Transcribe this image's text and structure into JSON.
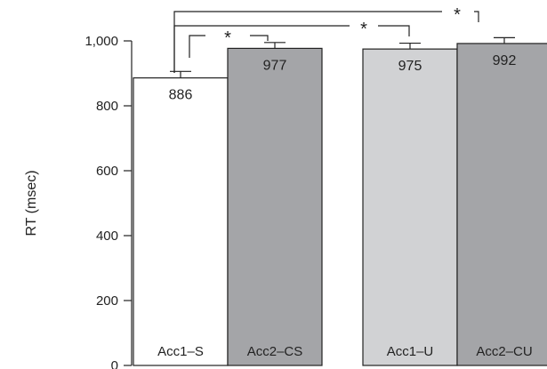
{
  "chart_data": {
    "type": "bar",
    "title": "",
    "xlabel": "",
    "ylabel": "RT (msec)",
    "ylim": [
      0,
      1000
    ],
    "yticks": [
      0,
      200,
      400,
      600,
      800,
      1000
    ],
    "ytick_labels": [
      "0",
      "200",
      "400",
      "600",
      "800",
      "1,000"
    ],
    "categories": [
      "Acc1–S",
      "Acc2–CS",
      "Acc1–U",
      "Acc2–CU"
    ],
    "values": [
      886,
      977,
      975,
      992
    ],
    "value_labels": [
      "886",
      "977",
      "975",
      "992"
    ],
    "error": [
      20,
      18,
      18,
      18
    ],
    "bar_colors": [
      "#ffffff",
      "#a4a5a8",
      "#d1d2d4",
      "#a4a5a8"
    ],
    "significance": [
      {
        "from": 0,
        "to": 1,
        "label": "*"
      },
      {
        "from": 0,
        "to": 2,
        "label": "*"
      },
      {
        "from": 0,
        "to": 3,
        "label": "*"
      }
    ]
  }
}
